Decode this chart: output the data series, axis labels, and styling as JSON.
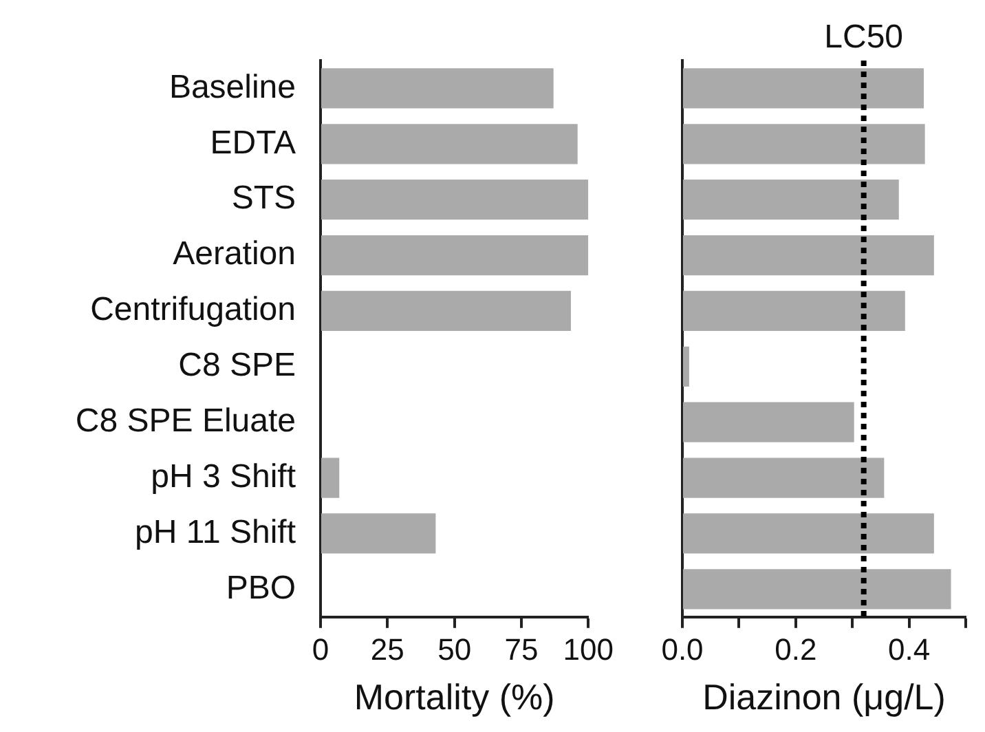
{
  "chart_data": [
    {
      "type": "bar",
      "orientation": "horizontal",
      "categories": [
        "Baseline",
        "EDTA",
        "STS",
        "Aeration",
        "Centrifugation",
        "C8 SPE",
        "C8 SPE Eluate",
        "pH 3 Shift",
        "pH 11 Shift",
        "PBO"
      ],
      "values": [
        87,
        96,
        100,
        100,
        93.5,
        0,
        0,
        7,
        43,
        0
      ],
      "color": "#aaaaaa",
      "xlabel": "Mortality (%)",
      "xlim": [
        0,
        100
      ],
      "xticks": [
        0,
        25,
        50,
        75,
        100
      ],
      "grid": false
    },
    {
      "type": "bar",
      "orientation": "horizontal",
      "categories": [
        null,
        null,
        null,
        null,
        null,
        null,
        null,
        null,
        null,
        null
      ],
      "values": [
        0.426,
        0.428,
        0.382,
        0.444,
        0.393,
        0.012,
        0.303,
        0.356,
        0.444,
        0.474
      ],
      "color": "#aaaaaa",
      "xlabel": "Diazinon (μg/L)",
      "xlim": [
        0,
        0.5
      ],
      "xticks": [
        {
          "value": 0,
          "label": "0.0"
        },
        {
          "value": 0.1,
          "label": null
        },
        0.2,
        {
          "value": 0.3,
          "label": null
        },
        0.4,
        {
          "value": 0.5,
          "label": null
        }
      ],
      "tick_labels": "x",
      "grid": false,
      "ref_lines": [
        {
          "axis": "x",
          "value": 0.32,
          "label": "LC50",
          "line_style": "dotted",
          "color": "#000000"
        }
      ]
    }
  ]
}
